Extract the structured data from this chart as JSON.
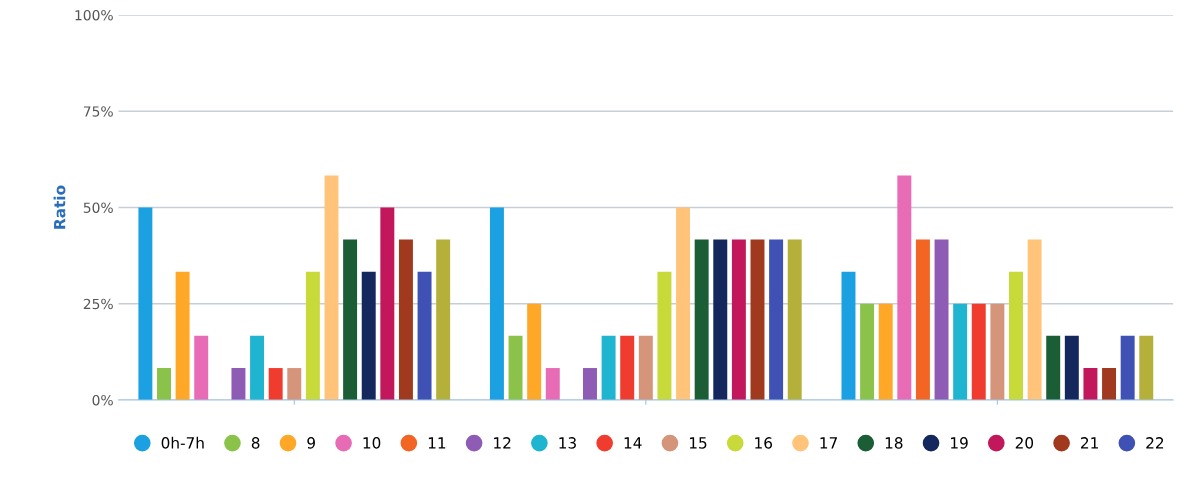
{
  "chart_data": {
    "type": "bar",
    "ylabel": "Ratio",
    "categories": [
      null,
      null,
      null
    ],
    "ylim": [
      0,
      100
    ],
    "yticks": [
      {
        "value": 0,
        "label": "0%"
      },
      {
        "value": 25,
        "label": "25%"
      },
      {
        "value": 50,
        "label": "50%"
      },
      {
        "value": 75,
        "label": "75%"
      },
      {
        "value": 100,
        "label": "100%"
      }
    ],
    "grid": "y",
    "legend": "bottom",
    "series": [
      {
        "name": "0h-7h",
        "color": "#1ba1e2",
        "values": [
          50,
          50,
          33.3
        ]
      },
      {
        "name": "8",
        "color": "#8bc34a",
        "values": [
          8.3,
          16.7,
          25
        ]
      },
      {
        "name": "9",
        "color": "#ffa726",
        "values": [
          33.3,
          25,
          25
        ]
      },
      {
        "name": "10",
        "color": "#e86bb5",
        "values": [
          16.7,
          8.3,
          58.3
        ]
      },
      {
        "name": "11",
        "color": "#f26522",
        "values": [
          0,
          0,
          41.7
        ]
      },
      {
        "name": "12",
        "color": "#8e5bb5",
        "values": [
          8.3,
          8.3,
          41.7
        ]
      },
      {
        "name": "13",
        "color": "#1fb5d0",
        "values": [
          16.7,
          16.7,
          25
        ]
      },
      {
        "name": "14",
        "color": "#f03c2e",
        "values": [
          8.3,
          16.7,
          25
        ]
      },
      {
        "name": "15",
        "color": "#d4957a",
        "values": [
          8.3,
          16.7,
          25
        ]
      },
      {
        "name": "16",
        "color": "#c8d93a",
        "values": [
          33.3,
          33.3,
          33.3
        ]
      },
      {
        "name": "17",
        "color": "#ffc37a",
        "values": [
          58.3,
          50,
          41.7
        ]
      },
      {
        "name": "18",
        "color": "#1b5e35",
        "values": [
          41.7,
          41.7,
          16.7
        ]
      },
      {
        "name": "19",
        "color": "#14285e",
        "values": [
          33.3,
          41.7,
          16.7
        ]
      },
      {
        "name": "20",
        "color": "#c2185b",
        "values": [
          50,
          41.7,
          8.3
        ]
      },
      {
        "name": "21",
        "color": "#a0391e",
        "values": [
          41.7,
          41.7,
          8.3
        ]
      },
      {
        "name": "22",
        "color": "#3f51b5",
        "values": [
          33.3,
          41.7,
          16.7
        ]
      },
      {
        "color": "#b5b03a",
        "values": [
          41.7,
          41.7,
          16.7
        ]
      }
    ]
  }
}
